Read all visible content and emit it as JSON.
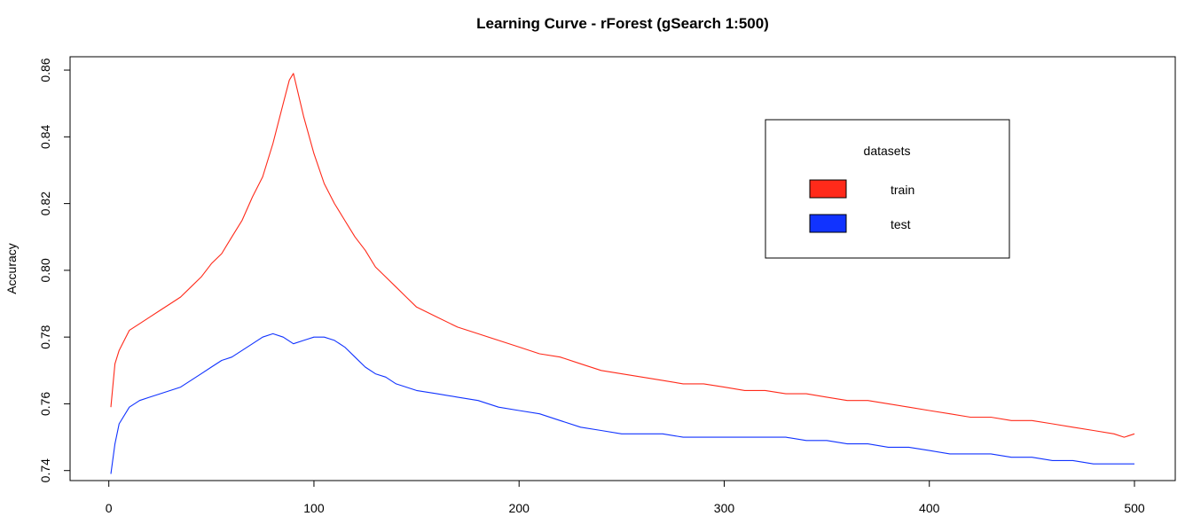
{
  "chart_data": {
    "type": "line",
    "title": "Learning Curve - rForest (gSearch 1:500)",
    "xlabel": "",
    "ylabel": "Accuracy",
    "xlim": [
      1,
      500
    ],
    "ylim": [
      0.737,
      0.864
    ],
    "x_ticks": [
      0,
      100,
      200,
      300,
      400,
      500
    ],
    "y_ticks": [
      0.74,
      0.76,
      0.78,
      0.8,
      0.82,
      0.84,
      0.86
    ],
    "y_tick_labels": [
      "0.74",
      "0.76",
      "0.78",
      "0.80",
      "0.82",
      "0.84",
      "0.86"
    ],
    "grid": false,
    "legend": {
      "title": "datasets",
      "placement": "top-right",
      "entries": [
        "train",
        "test"
      ]
    },
    "series": [
      {
        "name": "train",
        "color": "#ff2a1a",
        "x": [
          1,
          3,
          5,
          10,
          15,
          20,
          25,
          30,
          35,
          40,
          45,
          50,
          55,
          60,
          65,
          70,
          75,
          80,
          85,
          88,
          90,
          95,
          100,
          105,
          110,
          115,
          120,
          125,
          130,
          135,
          140,
          145,
          150,
          160,
          170,
          180,
          190,
          200,
          210,
          220,
          230,
          240,
          250,
          260,
          270,
          280,
          290,
          300,
          310,
          320,
          330,
          340,
          350,
          360,
          370,
          380,
          390,
          400,
          410,
          420,
          430,
          440,
          450,
          460,
          470,
          480,
          490,
          495,
          500
        ],
        "y": [
          0.759,
          0.772,
          0.776,
          0.782,
          0.784,
          0.786,
          0.788,
          0.79,
          0.792,
          0.795,
          0.798,
          0.802,
          0.805,
          0.81,
          0.815,
          0.822,
          0.828,
          0.838,
          0.85,
          0.857,
          0.859,
          0.846,
          0.835,
          0.826,
          0.82,
          0.815,
          0.81,
          0.806,
          0.801,
          0.798,
          0.795,
          0.792,
          0.789,
          0.786,
          0.783,
          0.781,
          0.779,
          0.777,
          0.775,
          0.774,
          0.772,
          0.77,
          0.769,
          0.768,
          0.767,
          0.766,
          0.766,
          0.765,
          0.764,
          0.764,
          0.763,
          0.763,
          0.762,
          0.761,
          0.761,
          0.76,
          0.759,
          0.758,
          0.757,
          0.756,
          0.756,
          0.755,
          0.755,
          0.754,
          0.753,
          0.752,
          0.751,
          0.75,
          0.751
        ]
      },
      {
        "name": "test",
        "color": "#1133ff",
        "x": [
          1,
          3,
          5,
          10,
          15,
          20,
          25,
          30,
          35,
          40,
          45,
          50,
          55,
          60,
          65,
          70,
          75,
          80,
          85,
          90,
          95,
          100,
          105,
          110,
          115,
          120,
          125,
          130,
          135,
          140,
          150,
          160,
          170,
          180,
          190,
          200,
          210,
          220,
          230,
          240,
          250,
          260,
          270,
          280,
          290,
          300,
          310,
          320,
          330,
          340,
          350,
          360,
          370,
          380,
          390,
          400,
          410,
          420,
          430,
          440,
          450,
          460,
          470,
          480,
          490,
          500
        ],
        "y": [
          0.739,
          0.748,
          0.754,
          0.759,
          0.761,
          0.762,
          0.763,
          0.764,
          0.765,
          0.767,
          0.769,
          0.771,
          0.773,
          0.774,
          0.776,
          0.778,
          0.78,
          0.781,
          0.78,
          0.778,
          0.779,
          0.78,
          0.78,
          0.779,
          0.777,
          0.774,
          0.771,
          0.769,
          0.768,
          0.766,
          0.764,
          0.763,
          0.762,
          0.761,
          0.759,
          0.758,
          0.757,
          0.755,
          0.753,
          0.752,
          0.751,
          0.751,
          0.751,
          0.75,
          0.75,
          0.75,
          0.75,
          0.75,
          0.75,
          0.749,
          0.749,
          0.748,
          0.748,
          0.747,
          0.747,
          0.746,
          0.745,
          0.745,
          0.745,
          0.744,
          0.744,
          0.743,
          0.743,
          0.742,
          0.742,
          0.742
        ]
      }
    ]
  }
}
